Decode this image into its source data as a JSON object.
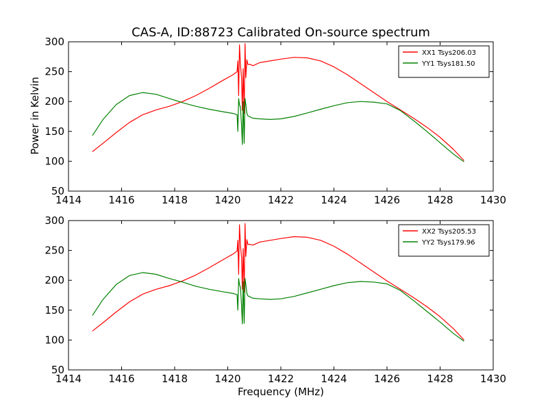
{
  "figure": {
    "title": "CAS-A, ID:88723 Calibrated On-source spectrum",
    "ylabel": "Power in Kelvin",
    "xlabel": "Frequency (MHz)"
  },
  "chart_data": [
    {
      "type": "line",
      "xlim": [
        1414,
        1430
      ],
      "ylim": [
        50,
        300
      ],
      "xticks": [
        1414,
        1416,
        1418,
        1420,
        1422,
        1424,
        1426,
        1428,
        1430
      ],
      "yticks": [
        50,
        100,
        150,
        200,
        250,
        300
      ],
      "legend": "top-right",
      "grid": false,
      "series": [
        {
          "name": "XX1 Tsys206.03",
          "color": "#ff0000",
          "x": [
            1414.9,
            1415.3,
            1415.8,
            1416.3,
            1416.8,
            1417.3,
            1417.8,
            1418.3,
            1418.8,
            1419.3,
            1419.8,
            1420.2,
            1420.35,
            1420.38,
            1420.41,
            1420.44,
            1420.48,
            1420.52,
            1420.55,
            1420.58,
            1420.62,
            1420.65,
            1420.68,
            1420.72,
            1420.76,
            1420.85,
            1420.95,
            1421.2,
            1421.6,
            1422.0,
            1422.5,
            1423.0,
            1423.5,
            1424.0,
            1424.5,
            1425.0,
            1425.5,
            1426.0,
            1426.5,
            1427.0,
            1427.5,
            1428.0,
            1428.5,
            1428.9
          ],
          "values": [
            116,
            130,
            148,
            165,
            178,
            186,
            192,
            200,
            210,
            222,
            235,
            245,
            250,
            268,
            210,
            295,
            260,
            240,
            185,
            255,
            180,
            297,
            240,
            270,
            262,
            262,
            260,
            265,
            268,
            271,
            274,
            273,
            268,
            258,
            245,
            230,
            215,
            200,
            186,
            172,
            157,
            140,
            120,
            101
          ]
        },
        {
          "name": "YY1 Tsys181.50",
          "color": "#008000",
          "x": [
            1414.9,
            1415.3,
            1415.8,
            1416.3,
            1416.8,
            1417.3,
            1417.8,
            1418.3,
            1418.8,
            1419.3,
            1419.8,
            1420.2,
            1420.35,
            1420.38,
            1420.41,
            1420.44,
            1420.48,
            1420.52,
            1420.55,
            1420.58,
            1420.62,
            1420.65,
            1420.68,
            1420.72,
            1420.76,
            1420.85,
            1420.95,
            1421.2,
            1421.6,
            1422.0,
            1422.5,
            1423.0,
            1423.5,
            1424.0,
            1424.5,
            1425.0,
            1425.5,
            1426.0,
            1426.5,
            1427.0,
            1427.5,
            1428.0,
            1428.5,
            1428.9
          ],
          "values": [
            143,
            170,
            195,
            210,
            215,
            212,
            205,
            198,
            192,
            187,
            183,
            180,
            178,
            150,
            205,
            195,
            190,
            160,
            128,
            200,
            130,
            205,
            195,
            180,
            176,
            174,
            172,
            171,
            170,
            171,
            175,
            181,
            187,
            193,
            198,
            200,
            199,
            196,
            185,
            168,
            150,
            131,
            112,
            99
          ]
        }
      ]
    },
    {
      "type": "line",
      "xlim": [
        1414,
        1430
      ],
      "ylim": [
        50,
        300
      ],
      "xticks": [
        1414,
        1416,
        1418,
        1420,
        1422,
        1424,
        1426,
        1428,
        1430
      ],
      "yticks": [
        50,
        100,
        150,
        200,
        250,
        300
      ],
      "legend": "top-right",
      "grid": false,
      "series": [
        {
          "name": "XX2 Tsys205.53",
          "color": "#ff0000",
          "x": [
            1414.9,
            1415.3,
            1415.8,
            1416.3,
            1416.8,
            1417.3,
            1417.8,
            1418.3,
            1418.8,
            1419.3,
            1419.8,
            1420.2,
            1420.35,
            1420.38,
            1420.41,
            1420.44,
            1420.48,
            1420.52,
            1420.55,
            1420.58,
            1420.62,
            1420.65,
            1420.68,
            1420.72,
            1420.76,
            1420.85,
            1420.95,
            1421.2,
            1421.6,
            1422.0,
            1422.5,
            1423.0,
            1423.5,
            1424.0,
            1424.5,
            1425.0,
            1425.5,
            1426.0,
            1426.5,
            1427.0,
            1427.5,
            1428.0,
            1428.5,
            1428.9
          ],
          "values": [
            115,
            129,
            147,
            164,
            177,
            185,
            191,
            199,
            209,
            221,
            234,
            244,
            249,
            267,
            210,
            293,
            258,
            238,
            185,
            253,
            180,
            295,
            240,
            268,
            260,
            260,
            259,
            264,
            267,
            270,
            273,
            272,
            267,
            257,
            244,
            229,
            214,
            199,
            185,
            171,
            156,
            139,
            119,
            100
          ]
        },
        {
          "name": "YY2 Tsys179.96",
          "color": "#008000",
          "x": [
            1414.9,
            1415.3,
            1415.8,
            1416.3,
            1416.8,
            1417.3,
            1417.8,
            1418.3,
            1418.8,
            1419.3,
            1419.8,
            1420.2,
            1420.35,
            1420.38,
            1420.41,
            1420.44,
            1420.48,
            1420.52,
            1420.55,
            1420.58,
            1420.62,
            1420.65,
            1420.68,
            1420.72,
            1420.76,
            1420.85,
            1420.95,
            1421.2,
            1421.6,
            1422.0,
            1422.5,
            1423.0,
            1423.5,
            1424.0,
            1424.5,
            1425.0,
            1425.5,
            1426.0,
            1426.5,
            1427.0,
            1427.5,
            1428.0,
            1428.5,
            1428.9
          ],
          "values": [
            141,
            168,
            193,
            208,
            213,
            210,
            203,
            197,
            190,
            185,
            181,
            178,
            176,
            150,
            203,
            193,
            188,
            158,
            127,
            198,
            128,
            203,
            193,
            178,
            174,
            172,
            170,
            169,
            168,
            169,
            173,
            179,
            185,
            191,
            196,
            198,
            197,
            194,
            183,
            166,
            148,
            130,
            111,
            98
          ]
        }
      ]
    }
  ]
}
